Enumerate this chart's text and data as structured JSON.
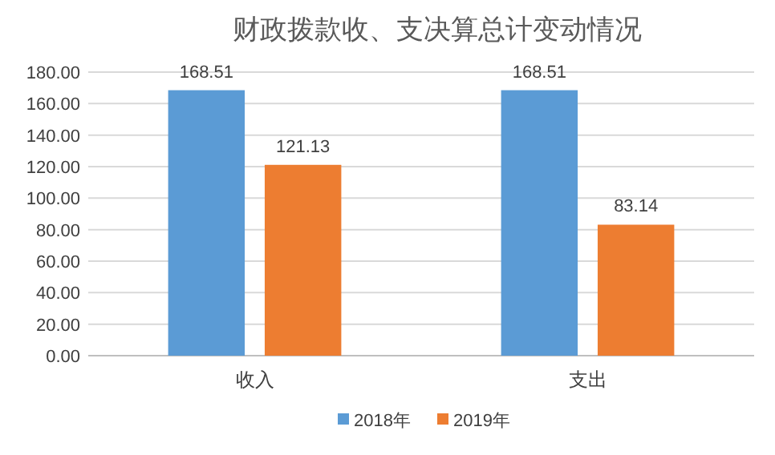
{
  "chart_data": {
    "type": "bar",
    "title": "财政拨款收、支决算总计变动情况",
    "categories": [
      "收入",
      "支出"
    ],
    "series": [
      {
        "name": "2018年",
        "color": "#5b9bd5",
        "values": [
          168.51,
          168.51
        ]
      },
      {
        "name": "2019年",
        "color": "#ed7d31",
        "values": [
          121.13,
          83.14
        ]
      }
    ],
    "ylim": [
      0,
      180
    ],
    "yticks": [
      {
        "value": 0,
        "label": "0.00"
      },
      {
        "value": 20,
        "label": "20.00"
      },
      {
        "value": 40,
        "label": "40.00"
      },
      {
        "value": 60,
        "label": "60.00"
      },
      {
        "value": 80,
        "label": "80.00"
      },
      {
        "value": 100,
        "label": "100.00"
      },
      {
        "value": 120,
        "label": "120.00"
      },
      {
        "value": 140,
        "label": "140.00"
      },
      {
        "value": 160,
        "label": "160.00"
      },
      {
        "value": 180,
        "label": "180.00"
      }
    ],
    "grid": "y",
    "legend": "bottom",
    "data_labels": true
  }
}
